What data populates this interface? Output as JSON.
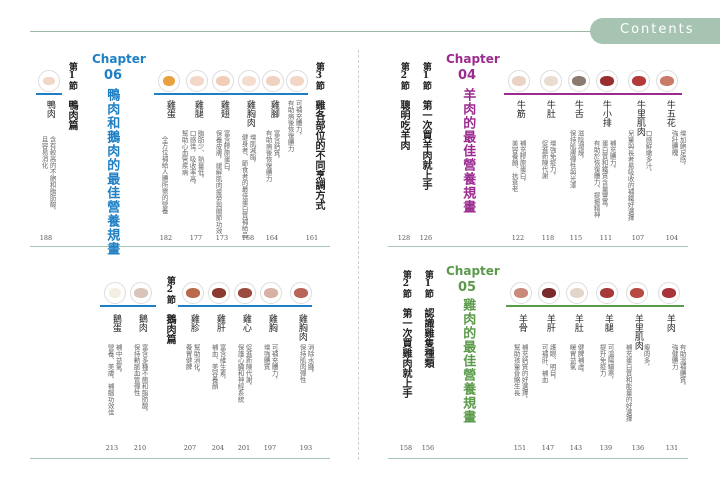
{
  "header": {
    "label": "Contents"
  },
  "colors": {
    "blue": "#1f7fc4",
    "purple": "#9b2b8f",
    "green": "#5a9a4a",
    "rule": "#a8c7b4"
  },
  "ch06": {
    "chapter_word": "Chapter",
    "num": "06",
    "title": "鴨肉和鵝肉的最佳營養規畫",
    "sections": [
      {
        "num": "第1節",
        "title": "鴨肉篇"
      },
      {
        "num": "第3節",
        "title": "雞各部位的不同烹調方式"
      }
    ],
    "items": [
      {
        "name": "鴨肉",
        "desc": [
          "含有較高的不飽和脂肪酸，",
          "且容易消化"
        ],
        "page": "188"
      },
      {
        "name": "雞蛋",
        "desc": [
          "全方位補給人體所需的營養"
        ],
        "page": "182"
      },
      {
        "name": "雞腿",
        "desc": [
          "脂肪少、熱量低，",
          "口感佳，吸收率高，",
          "幫助心血管疾病"
        ],
        "page": "177"
      },
      {
        "name": "雞翅",
        "desc": [
          "富含膠原蛋白，",
          "保養皮膚，緩解肌肉疲勞與關節功效"
        ],
        "page": "173"
      },
      {
        "name": "雞胸肉",
        "desc": [
          "增肌減脂，",
          "健身者、節食者的最佳蛋白質補給品"
        ],
        "page": "168"
      },
      {
        "name": "雞腳",
        "desc": [
          "富含鈣質，",
          "有助病後恢復體力"
        ],
        "page": "164"
      },
      {
        "name": "",
        "desc": [
          "可補充體力，",
          "有助病後恢復體力"
        ],
        "page": "161"
      }
    ]
  },
  "ch04": {
    "chapter_word": "Chapter",
    "num": "04",
    "title": "羊肉的最佳營養規畫",
    "sections": [
      {
        "num": "第2節",
        "title": "聰明吃羊肉"
      },
      {
        "num": "第1節",
        "title": "第一次買羊肉就上手"
      }
    ],
    "pages_sections": [
      "128",
      "126"
    ],
    "items": [
      {
        "name": "牛筋",
        "desc": [
          "補充膠原蛋白，",
          "美容養顏、抗衰老"
        ],
        "page": "122"
      },
      {
        "name": "牛肚",
        "desc": [
          "增強免疫力，",
          "促進新陳代謝"
        ],
        "page": "118"
      },
      {
        "name": "牛舌",
        "desc": [
          "滋陰潤燥，",
          "保持肌膚彈性與光澤"
        ],
        "page": "115"
      },
      {
        "name": "牛小排",
        "desc": [
          "補充體力，",
          "蛋白質和鐵質含量豐富，",
          "有助於恢復體力、提振精神"
        ],
        "page": "111"
      },
      {
        "name": "牛里肌肉",
        "desc": [
          "口感鮮嫩多汁，",
          "兒童與長者易吸收的補鐵好選擇"
        ],
        "page": "107"
      },
      {
        "name": "牛五花",
        "desc": [
          "增加飽足感，",
          "強壯體魄"
        ],
        "page": "104"
      }
    ]
  },
  "ch05": {
    "chapter_word": "Chapter",
    "num": "05",
    "title": "雞肉的最佳營養規畫",
    "sections": [
      {
        "num": "第2節",
        "title": "第一次買雞肉就上手"
      },
      {
        "num": "第1節",
        "title": "認識雞隻種類"
      }
    ],
    "pages_sections": [
      "158",
      "156"
    ],
    "items": [
      {
        "name": "羊骨",
        "desc": [
          "補充鈣質的好選擇，",
          "幫助孩童骨骼生長"
        ],
        "page": "151"
      },
      {
        "name": "羊肝",
        "desc": [
          "護眼、明目，",
          "可補肝、補血"
        ],
        "page": "147"
      },
      {
        "name": "羊肚",
        "desc": [
          "健脾補虛，",
          "暖胃益氣"
        ],
        "page": "143"
      },
      {
        "name": "羊腿",
        "desc": [
          "可溫陽驅寒，",
          "提升免疫力"
        ],
        "page": "139"
      },
      {
        "name": "羊里肌肉",
        "desc": [
          "瘦肉多，",
          "補充蛋白質和能量的好選擇"
        ],
        "page": "136"
      },
      {
        "name": "羊肉",
        "desc": [
          "有助溫補體質，",
          "強健體力"
        ],
        "page": "131"
      }
    ]
  },
  "ch06b": {
    "sections": [
      {
        "num": "第2節",
        "title": "鵝肉篇"
      }
    ],
    "items": [
      {
        "name": "鵝蛋",
        "desc": [
          "補中益氣，",
          "營養、美膚、補腦功效佳"
        ],
        "page": "213"
      },
      {
        "name": "鵝肉",
        "desc": [
          "富含多種不飽和脂肪酸，",
          "保持動脈血管彈性"
        ],
        "page": "210"
      },
      {
        "name": "雞胗",
        "desc": [
          "幫助消化，",
          "養胃健脾"
        ],
        "page": "207"
      },
      {
        "name": "雞肝",
        "desc": [
          "富含維生素，",
          "補血、美容養顏"
        ],
        "page": "204"
      },
      {
        "name": "雞心",
        "desc": [
          "促進新陳代謝，",
          "保護心臟和神經系統"
        ],
        "page": "201"
      },
      {
        "name": "雞胸",
        "desc": [
          "可補充體力，",
          "增強體質"
        ],
        "page": "197"
      },
      {
        "name": "雞胸肉",
        "desc": [
          "消除水腫，",
          "保持肌肉彈性"
        ],
        "page": "193"
      }
    ]
  }
}
